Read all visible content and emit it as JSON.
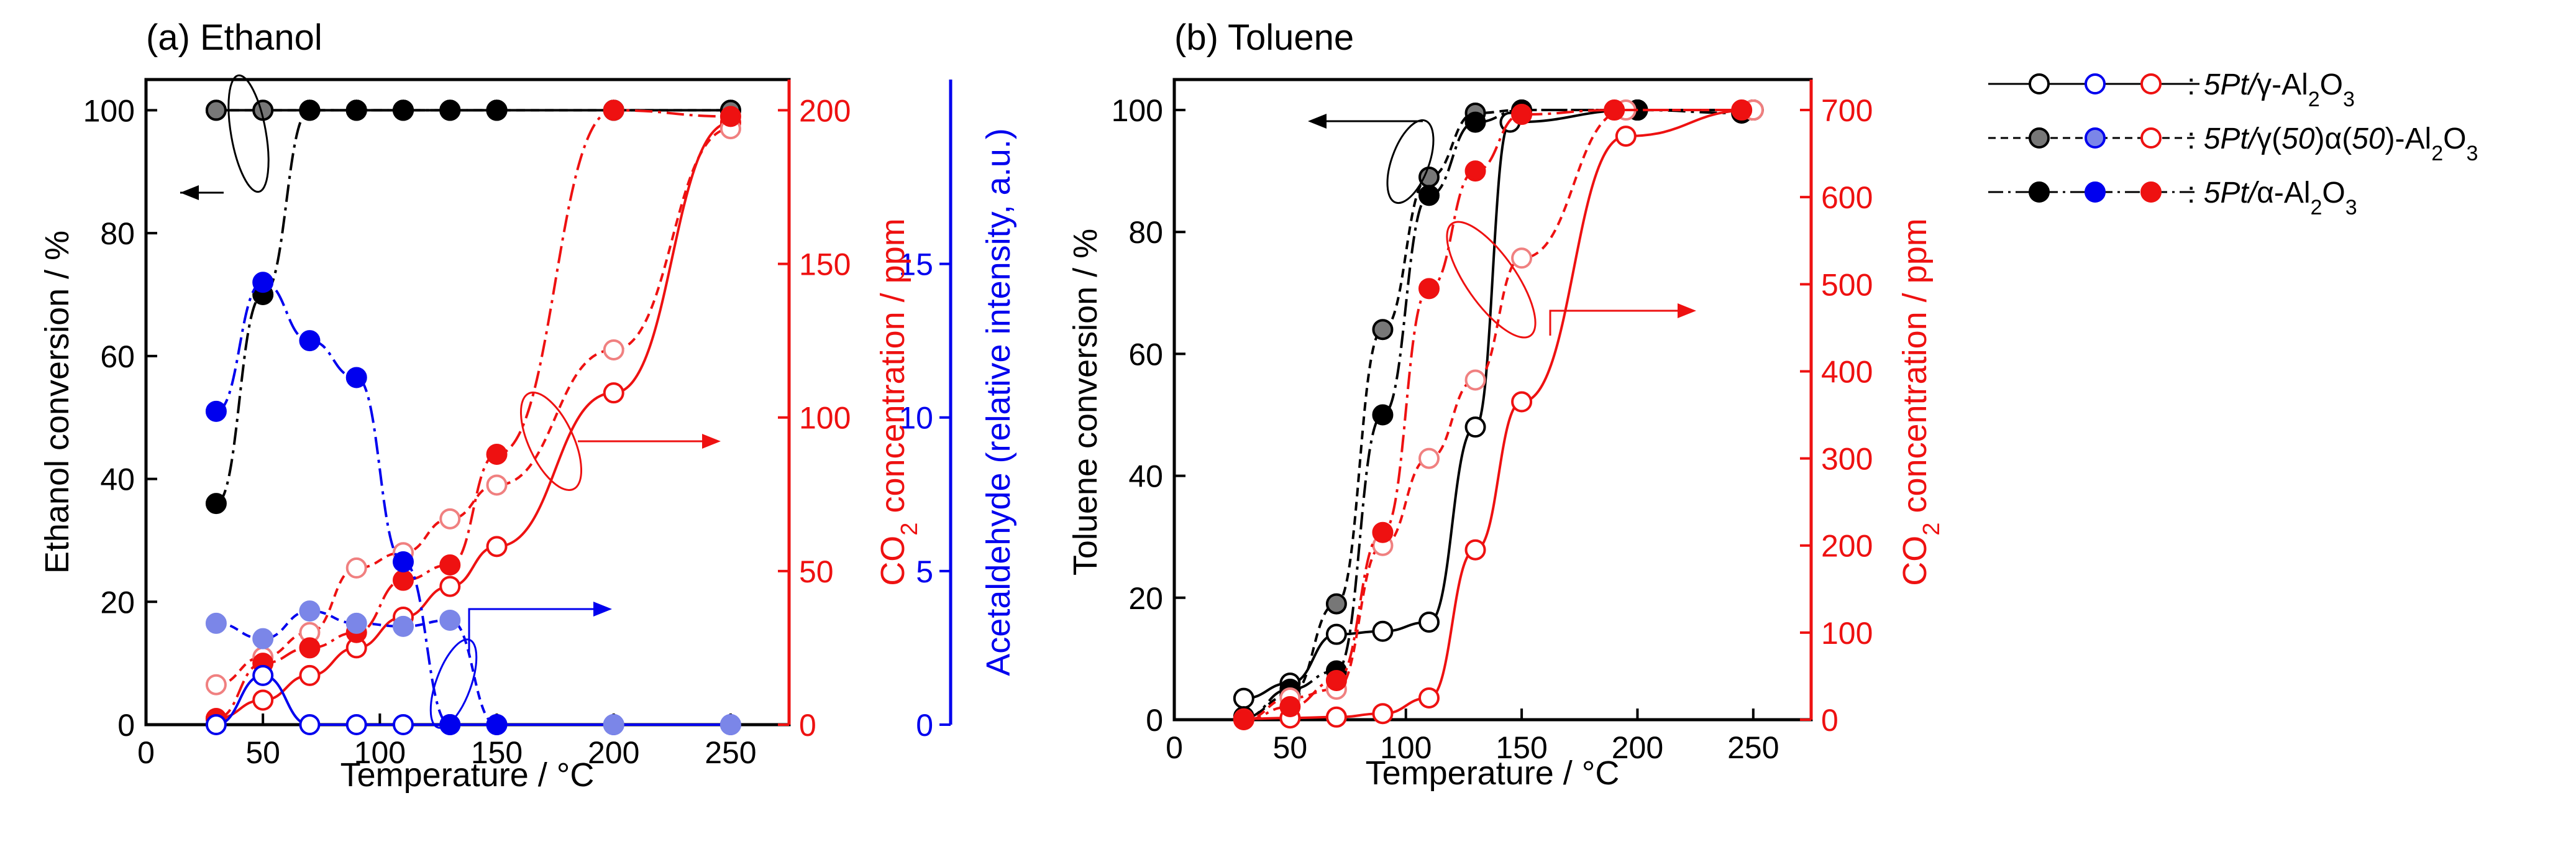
{
  "legend": {
    "entries": [
      {
        "prefix": "5Pt/",
        "label_tokens": [
          "γ",
          "-Al",
          "2",
          "O",
          "3"
        ],
        "style": "solid"
      },
      {
        "prefix": "5Pt/",
        "label_tokens": [
          "γ(",
          "50",
          ")α(",
          "50",
          ")-Al",
          "2",
          "O",
          "3"
        ],
        "style": "dashed"
      },
      {
        "prefix": "5Pt/",
        "label_tokens": [
          "α",
          "-Al",
          "2",
          "O",
          "3"
        ],
        "style": "dashdot"
      }
    ],
    "sep": ":"
  },
  "colors": {
    "black": "#000000",
    "blue": "#0000ee",
    "red": "#ee1111",
    "gray": "#777777",
    "lightblue": "#7b86e8",
    "pink": "#f08080"
  },
  "chart_data": [
    {
      "type": "line",
      "panel": "a",
      "title": "(a) Ethanol",
      "xlabel": "Temperature / °C",
      "xlim": [
        0,
        275
      ],
      "xticks": [
        0,
        50,
        100,
        150,
        200,
        250
      ],
      "ylabel": "Ethanol conversion / %",
      "ylim": [
        0,
        105
      ],
      "yticks": [
        0,
        20,
        40,
        60,
        80,
        100
      ],
      "y2label_tokens": [
        "CO",
        "2",
        " concentration / ppm"
      ],
      "y2lim": [
        0,
        210
      ],
      "y2ticks": [
        0,
        50,
        100,
        150,
        200
      ],
      "y3label": "Acetaldehyde (relative intensity, a.u.)",
      "y3lim": [
        0,
        21
      ],
      "y3ticks": [
        0,
        5,
        10,
        15
      ],
      "series": [
        {
          "name": "5Pt/γ-Al2O3 ethanol conversion",
          "axis": "left",
          "color": "black",
          "marker": "open",
          "style": "solid",
          "x": [
            30,
            50,
            70,
            90,
            110,
            130,
            150,
            200,
            250
          ],
          "y": [
            100,
            100,
            100,
            100,
            100,
            100,
            100,
            100,
            100
          ]
        },
        {
          "name": "5Pt/γ(50)α(50)-Al2O3 ethanol conversion",
          "axis": "left",
          "color": "gray",
          "marker": "filled",
          "style": "dashed",
          "x": [
            30,
            50,
            70,
            90,
            110,
            130,
            150,
            200,
            250
          ],
          "y": [
            100,
            100,
            100,
            100,
            100,
            100,
            100,
            100,
            100
          ]
        },
        {
          "name": "5Pt/α-Al2O3 ethanol conversion",
          "axis": "left",
          "color": "black",
          "marker": "filled",
          "style": "dashdot",
          "x": [
            30,
            50,
            70,
            90,
            110,
            130,
            150
          ],
          "y": [
            36,
            70,
            100,
            100,
            100,
            100,
            100
          ]
        },
        {
          "name": "5Pt/γ-Al2O3 CO2",
          "axis": "right",
          "color": "red",
          "marker": "open",
          "style": "solid",
          "x": [
            30,
            50,
            70,
            90,
            110,
            130,
            150,
            200,
            250
          ],
          "y": [
            2,
            8,
            16,
            25,
            35,
            45,
            58,
            108,
            196
          ]
        },
        {
          "name": "5Pt/γ(50)α(50)-Al2O3 CO2",
          "axis": "right",
          "color": "pink",
          "marker": "open",
          "style": "dashed",
          "x": [
            30,
            50,
            70,
            90,
            110,
            130,
            150,
            200,
            250
          ],
          "y": [
            13,
            22,
            30,
            51,
            56,
            67,
            78,
            122,
            194
          ]
        },
        {
          "name": "5Pt/α-Al2O3 CO2",
          "axis": "right",
          "color": "red",
          "marker": "filled",
          "style": "dashdot",
          "x": [
            30,
            50,
            70,
            90,
            110,
            130,
            150,
            200,
            250
          ],
          "y": [
            2,
            20,
            25,
            30,
            47,
            52,
            88,
            200,
            198
          ]
        },
        {
          "name": "5Pt/γ-Al2O3 acetaldehyde",
          "axis": "right2",
          "color": "blue",
          "marker": "open",
          "style": "solid",
          "x": [
            30,
            50,
            70,
            90,
            110,
            130,
            150,
            200,
            250
          ],
          "y": [
            0,
            1.6,
            0,
            0,
            0,
            0,
            0,
            0,
            0
          ]
        },
        {
          "name": "5Pt/γ(50)α(50)-Al2O3 acetaldehyde",
          "axis": "right2",
          "color": "lightblue",
          "marker": "filled",
          "style": "dashed",
          "x": [
            30,
            50,
            70,
            90,
            110,
            130,
            150,
            200,
            250
          ],
          "y": [
            3.3,
            2.8,
            3.7,
            3.3,
            3.2,
            3.4,
            0,
            0,
            0
          ]
        },
        {
          "name": "5Pt/α-Al2O3 acetaldehyde",
          "axis": "right2",
          "color": "blue",
          "marker": "filled",
          "style": "dashdot",
          "x": [
            30,
            50,
            70,
            90,
            110,
            130,
            150
          ],
          "y": [
            10.2,
            14.4,
            12.5,
            11.3,
            5.3,
            0,
            0
          ]
        }
      ]
    },
    {
      "type": "line",
      "panel": "b",
      "title": "(b) Toluene",
      "xlabel": "Temperature / °C",
      "xlim": [
        0,
        275
      ],
      "xticks": [
        0,
        50,
        100,
        150,
        200,
        250
      ],
      "ylabel": "Toluene conversion / %",
      "ylim": [
        0,
        105
      ],
      "yticks": [
        0,
        20,
        40,
        60,
        80,
        100
      ],
      "y2label_tokens": [
        "CO",
        "2",
        " concentration / ppm"
      ],
      "y2lim": [
        0,
        735
      ],
      "y2ticks": [
        0,
        100,
        200,
        300,
        400,
        500,
        600,
        700
      ],
      "series": [
        {
          "name": "5Pt/γ-Al2O3 toluene conversion",
          "axis": "left",
          "color": "black",
          "marker": "open",
          "style": "solid",
          "x": [
            30,
            50,
            70,
            90,
            110,
            130,
            145,
            200,
            250
          ],
          "y": [
            3.5,
            6,
            14,
            14.5,
            16,
            48,
            98,
            100,
            100
          ]
        },
        {
          "name": "5Pt/γ(50)α(50)-Al2O3 toluene conversion",
          "axis": "left",
          "color": "gray",
          "marker": "filled",
          "style": "dashed",
          "x": [
            30,
            50,
            70,
            90,
            110,
            130,
            150,
            200,
            250
          ],
          "y": [
            0.5,
            4,
            19,
            64,
            89,
            99.5,
            100,
            100,
            100
          ]
        },
        {
          "name": "5Pt/α-Al2O3 toluene conversion",
          "axis": "left",
          "color": "black",
          "marker": "filled",
          "style": "dashdot",
          "x": [
            30,
            50,
            70,
            90,
            110,
            130,
            150,
            200,
            245
          ],
          "y": [
            0.3,
            5,
            8,
            50,
            86,
            98,
            100,
            100,
            99.5
          ]
        },
        {
          "name": "5Pt/γ-Al2O3 CO2",
          "axis": "right",
          "color": "red",
          "marker": "open",
          "style": "solid",
          "x": [
            30,
            50,
            70,
            90,
            110,
            130,
            150,
            195,
            250
          ],
          "y": [
            1,
            2,
            3,
            7,
            25,
            195,
            365,
            670,
            700
          ]
        },
        {
          "name": "5Pt/γ(50)α(50)-Al2O3 CO2",
          "axis": "right",
          "color": "pink",
          "marker": "open",
          "style": "dashed",
          "x": [
            30,
            50,
            70,
            90,
            110,
            130,
            150,
            195,
            250
          ],
          "y": [
            0,
            25,
            35,
            200,
            300,
            390,
            530,
            700,
            700
          ]
        },
        {
          "name": "5Pt/α-Al2O3 CO2",
          "axis": "right",
          "color": "red",
          "marker": "filled",
          "style": "dashdot",
          "x": [
            30,
            50,
            70,
            90,
            110,
            130,
            150,
            190,
            245
          ],
          "y": [
            0,
            15,
            45,
            215,
            495,
            630,
            695,
            700,
            700
          ]
        }
      ]
    }
  ]
}
